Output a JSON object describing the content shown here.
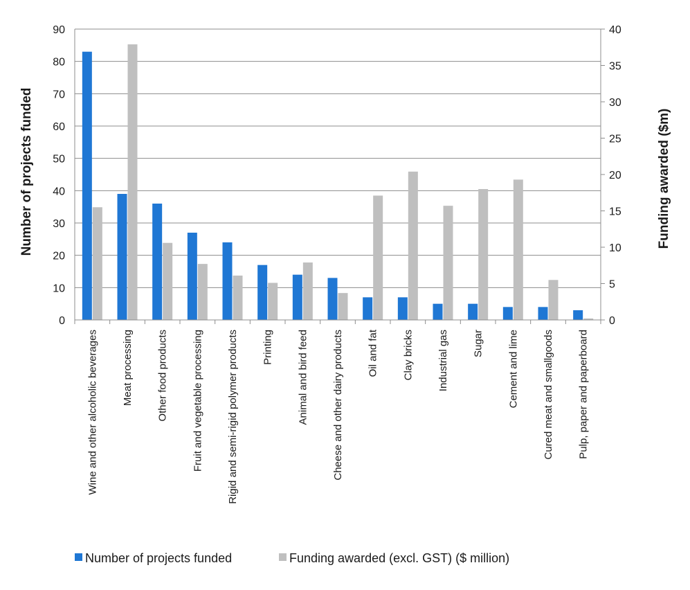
{
  "chart_data": {
    "type": "bar",
    "categories": [
      "Wine and other alcoholic beverages",
      "Meat processing",
      "Other food products",
      "Fruit and vegetable processing",
      "Rigid and semi-rigid polymer products",
      "Printing",
      "Animal and bird feed",
      "Cheese and other dairy products",
      "Oil and fat",
      "Clay bricks",
      "Industrial gas",
      "Sugar",
      "Cement and lime",
      "Cured meat and smallgoods",
      "Pulp, paper and paperboard"
    ],
    "series": [
      {
        "name": "Number of projects funded",
        "axis": "left",
        "color": "#1f77d4",
        "values": [
          83,
          39,
          36,
          27,
          24,
          17,
          14,
          13,
          7,
          7,
          5,
          5,
          4,
          4,
          3
        ]
      },
      {
        "name": "Funding awarded (excl. GST) ($ million)",
        "axis": "right",
        "color": "#bfbfbf",
        "values": [
          15.5,
          37.9,
          10.6,
          7.7,
          6.1,
          5.1,
          7.9,
          3.7,
          17.1,
          20.4,
          15.7,
          18.0,
          19.3,
          5.5,
          0.2
        ]
      }
    ],
    "ylabel": "Number of projects funded",
    "y2label": "Funding awarded ($m)",
    "ylim": [
      0,
      90
    ],
    "y2lim": [
      0,
      40
    ],
    "yticks": [
      "0",
      "10",
      "20",
      "30",
      "40",
      "50",
      "60",
      "70",
      "80",
      "90"
    ],
    "y2ticks": [
      "0",
      "5",
      "10",
      "15",
      "20",
      "25",
      "30",
      "35",
      "40"
    ],
    "grid": true,
    "legend": "bottom"
  }
}
